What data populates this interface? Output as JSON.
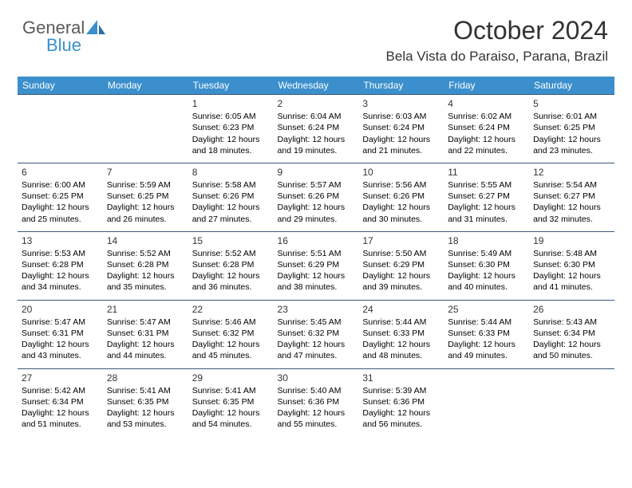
{
  "logo": {
    "text1": "General",
    "text2": "Blue"
  },
  "header": {
    "title": "October 2024",
    "location": "Bela Vista do Paraiso, Parana, Brazil"
  },
  "colors": {
    "header_bg": "#3b8fcc",
    "header_text": "#ffffff",
    "cell_border": "#3b5a7a",
    "title_color": "#333333",
    "body_text": "#000000",
    "logo_gray": "#5a5a5a",
    "logo_blue": "#3b8fcc",
    "background": "#ffffff"
  },
  "day_headers": [
    "Sunday",
    "Monday",
    "Tuesday",
    "Wednesday",
    "Thursday",
    "Friday",
    "Saturday"
  ],
  "weeks": [
    [
      null,
      null,
      {
        "n": "1",
        "sr": "6:05 AM",
        "ss": "6:23 PM",
        "dl": "12 hours and 18 minutes."
      },
      {
        "n": "2",
        "sr": "6:04 AM",
        "ss": "6:24 PM",
        "dl": "12 hours and 19 minutes."
      },
      {
        "n": "3",
        "sr": "6:03 AM",
        "ss": "6:24 PM",
        "dl": "12 hours and 21 minutes."
      },
      {
        "n": "4",
        "sr": "6:02 AM",
        "ss": "6:24 PM",
        "dl": "12 hours and 22 minutes."
      },
      {
        "n": "5",
        "sr": "6:01 AM",
        "ss": "6:25 PM",
        "dl": "12 hours and 23 minutes."
      }
    ],
    [
      {
        "n": "6",
        "sr": "6:00 AM",
        "ss": "6:25 PM",
        "dl": "12 hours and 25 minutes."
      },
      {
        "n": "7",
        "sr": "5:59 AM",
        "ss": "6:25 PM",
        "dl": "12 hours and 26 minutes."
      },
      {
        "n": "8",
        "sr": "5:58 AM",
        "ss": "6:26 PM",
        "dl": "12 hours and 27 minutes."
      },
      {
        "n": "9",
        "sr": "5:57 AM",
        "ss": "6:26 PM",
        "dl": "12 hours and 29 minutes."
      },
      {
        "n": "10",
        "sr": "5:56 AM",
        "ss": "6:26 PM",
        "dl": "12 hours and 30 minutes."
      },
      {
        "n": "11",
        "sr": "5:55 AM",
        "ss": "6:27 PM",
        "dl": "12 hours and 31 minutes."
      },
      {
        "n": "12",
        "sr": "5:54 AM",
        "ss": "6:27 PM",
        "dl": "12 hours and 32 minutes."
      }
    ],
    [
      {
        "n": "13",
        "sr": "5:53 AM",
        "ss": "6:28 PM",
        "dl": "12 hours and 34 minutes."
      },
      {
        "n": "14",
        "sr": "5:52 AM",
        "ss": "6:28 PM",
        "dl": "12 hours and 35 minutes."
      },
      {
        "n": "15",
        "sr": "5:52 AM",
        "ss": "6:28 PM",
        "dl": "12 hours and 36 minutes."
      },
      {
        "n": "16",
        "sr": "5:51 AM",
        "ss": "6:29 PM",
        "dl": "12 hours and 38 minutes."
      },
      {
        "n": "17",
        "sr": "5:50 AM",
        "ss": "6:29 PM",
        "dl": "12 hours and 39 minutes."
      },
      {
        "n": "18",
        "sr": "5:49 AM",
        "ss": "6:30 PM",
        "dl": "12 hours and 40 minutes."
      },
      {
        "n": "19",
        "sr": "5:48 AM",
        "ss": "6:30 PM",
        "dl": "12 hours and 41 minutes."
      }
    ],
    [
      {
        "n": "20",
        "sr": "5:47 AM",
        "ss": "6:31 PM",
        "dl": "12 hours and 43 minutes."
      },
      {
        "n": "21",
        "sr": "5:47 AM",
        "ss": "6:31 PM",
        "dl": "12 hours and 44 minutes."
      },
      {
        "n": "22",
        "sr": "5:46 AM",
        "ss": "6:32 PM",
        "dl": "12 hours and 45 minutes."
      },
      {
        "n": "23",
        "sr": "5:45 AM",
        "ss": "6:32 PM",
        "dl": "12 hours and 47 minutes."
      },
      {
        "n": "24",
        "sr": "5:44 AM",
        "ss": "6:33 PM",
        "dl": "12 hours and 48 minutes."
      },
      {
        "n": "25",
        "sr": "5:44 AM",
        "ss": "6:33 PM",
        "dl": "12 hours and 49 minutes."
      },
      {
        "n": "26",
        "sr": "5:43 AM",
        "ss": "6:34 PM",
        "dl": "12 hours and 50 minutes."
      }
    ],
    [
      {
        "n": "27",
        "sr": "5:42 AM",
        "ss": "6:34 PM",
        "dl": "12 hours and 51 minutes."
      },
      {
        "n": "28",
        "sr": "5:41 AM",
        "ss": "6:35 PM",
        "dl": "12 hours and 53 minutes."
      },
      {
        "n": "29",
        "sr": "5:41 AM",
        "ss": "6:35 PM",
        "dl": "12 hours and 54 minutes."
      },
      {
        "n": "30",
        "sr": "5:40 AM",
        "ss": "6:36 PM",
        "dl": "12 hours and 55 minutes."
      },
      {
        "n": "31",
        "sr": "5:39 AM",
        "ss": "6:36 PM",
        "dl": "12 hours and 56 minutes."
      },
      null,
      null
    ]
  ],
  "labels": {
    "sunrise": "Sunrise:",
    "sunset": "Sunset:",
    "daylight": "Daylight:"
  }
}
